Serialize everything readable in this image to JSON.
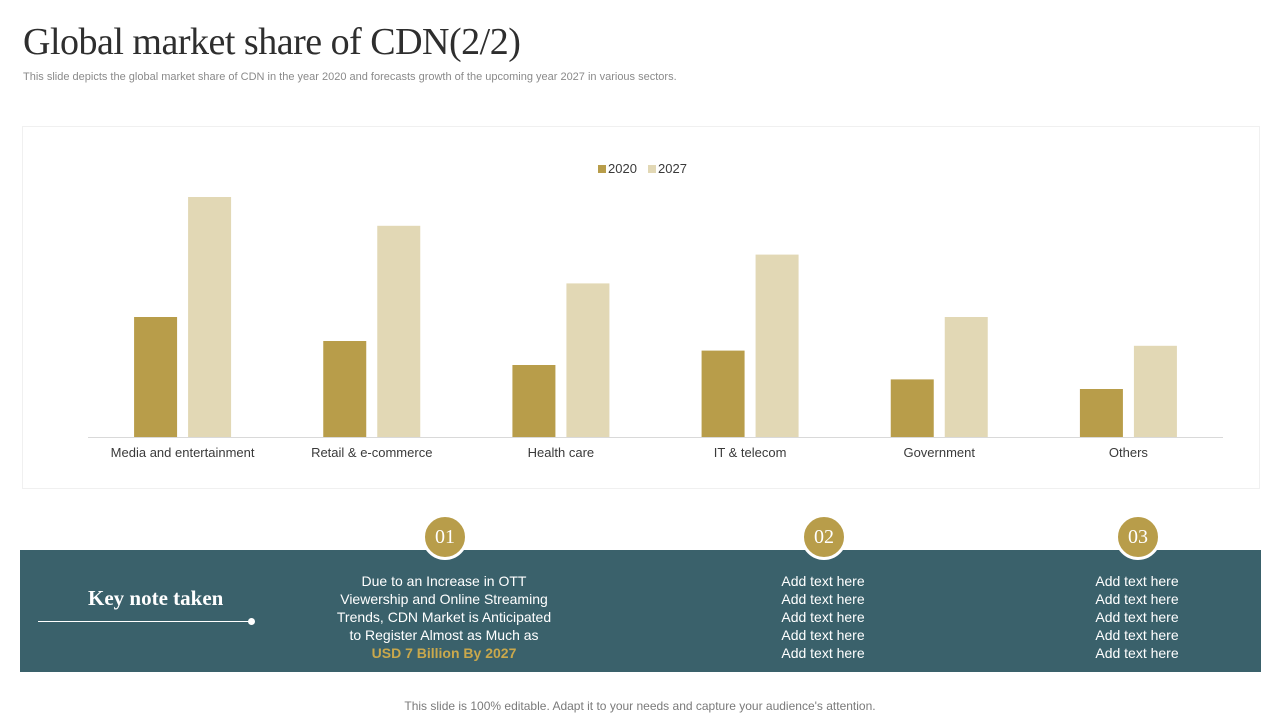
{
  "header": {
    "title": "Global market share of CDN(2/2)",
    "subtitle": "This slide depicts the global market share of CDN in the year 2020 and forecasts growth of the upcoming year 2027 in various sectors."
  },
  "colors": {
    "series_2020": "#b89d4a",
    "series_2027": "#e2d8b5",
    "band": "#3a616b",
    "accent": "#c9a84c"
  },
  "chart_data": {
    "type": "bar",
    "title": "",
    "xlabel": "",
    "ylabel": "",
    "legend": "top-center",
    "grid": false,
    "ylim": [
      0,
      100
    ],
    "categories": [
      "Media and entertainment",
      "Retail & e-commerce",
      "Health care",
      "IT & telecom",
      "Government",
      "Others"
    ],
    "series": [
      {
        "name": "2020",
        "values": [
          50,
          40,
          30,
          36,
          24,
          20
        ]
      },
      {
        "name": "2027",
        "values": [
          100,
          88,
          64,
          76,
          50,
          38
        ]
      }
    ]
  },
  "keynote": {
    "label": "Key note taken",
    "items": [
      {
        "number": "01",
        "lines": [
          "Due to an Increase in OTT",
          "Viewership and Online Streaming",
          "Trends, CDN Market is Anticipated",
          "to Register Almost as Much as"
        ],
        "highlight": "USD 7 Billion By 2027"
      },
      {
        "number": "02",
        "lines": [
          "Add text here",
          "Add text here",
          "Add text here",
          "Add text here",
          "Add text here"
        ]
      },
      {
        "number": "03",
        "lines": [
          "Add text here",
          "Add text here",
          "Add text here",
          "Add text here",
          "Add text here"
        ]
      }
    ]
  },
  "footer": {
    "text": "This slide is 100% editable. Adapt it to your needs and capture your audience's attention."
  }
}
